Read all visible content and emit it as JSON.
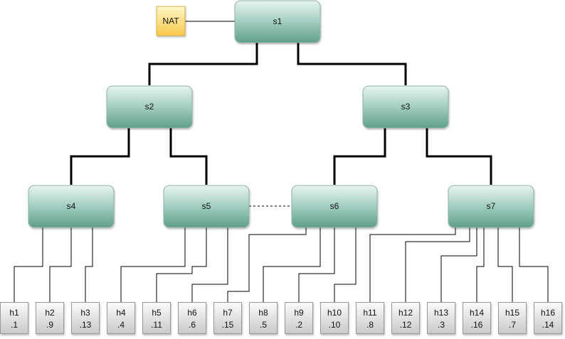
{
  "nat": {
    "label": "NAT"
  },
  "switches": [
    {
      "id": "s1",
      "label": "s1"
    },
    {
      "id": "s2",
      "label": "s2"
    },
    {
      "id": "s3",
      "label": "s3"
    },
    {
      "id": "s4",
      "label": "s4"
    },
    {
      "id": "s5",
      "label": "s5"
    },
    {
      "id": "s6",
      "label": "s6"
    },
    {
      "id": "s7",
      "label": "s7"
    }
  ],
  "hosts": [
    {
      "id": "h1",
      "name": "h1",
      "addr": ".1"
    },
    {
      "id": "h2",
      "name": "h2",
      "addr": ".9"
    },
    {
      "id": "h3",
      "name": "h3",
      "addr": ".13"
    },
    {
      "id": "h4",
      "name": "h4",
      "addr": ".4"
    },
    {
      "id": "h5",
      "name": "h5",
      "addr": ".11"
    },
    {
      "id": "h6",
      "name": "h6",
      "addr": ".6"
    },
    {
      "id": "h7",
      "name": "h7",
      "addr": ".15"
    },
    {
      "id": "h8",
      "name": "h8",
      "addr": ".5"
    },
    {
      "id": "h9",
      "name": "h9",
      "addr": ".2"
    },
    {
      "id": "h10",
      "name": "h10",
      "addr": ".10"
    },
    {
      "id": "h11",
      "name": "h11",
      "addr": ".8"
    },
    {
      "id": "h12",
      "name": "h12",
      "addr": ".12"
    },
    {
      "id": "h13",
      "name": "h13",
      "addr": ".3"
    },
    {
      "id": "h14",
      "name": "h14",
      "addr": ".16"
    },
    {
      "id": "h15",
      "name": "h15",
      "addr": ".7"
    },
    {
      "id": "h16",
      "name": "h16",
      "addr": ".14"
    }
  ],
  "links": {
    "trunk": [
      [
        "s1",
        "s2"
      ],
      [
        "s1",
        "s3"
      ],
      [
        "s2",
        "s4"
      ],
      [
        "s2",
        "s5"
      ],
      [
        "s3",
        "s6"
      ],
      [
        "s3",
        "s7"
      ]
    ],
    "dashed": [
      [
        "s5",
        "s6"
      ]
    ],
    "nat": [
      [
        "nat",
        "s1"
      ]
    ],
    "host": [
      [
        "s4",
        "h1"
      ],
      [
        "s4",
        "h2"
      ],
      [
        "s4",
        "h3"
      ],
      [
        "s5",
        "h4"
      ],
      [
        "s5",
        "h5"
      ],
      [
        "s5",
        "h6"
      ],
      [
        "s6",
        "h7"
      ],
      [
        "s6",
        "h8"
      ],
      [
        "s6",
        "h9"
      ],
      [
        "s6",
        "h10"
      ],
      [
        "s7",
        "h11"
      ],
      [
        "s7",
        "h12"
      ],
      [
        "s7",
        "h13"
      ],
      [
        "s7",
        "h14"
      ],
      [
        "s7",
        "h15"
      ],
      [
        "s7",
        "h16"
      ]
    ]
  },
  "colors": {
    "switch_top": "#e8f3ef",
    "switch_mid": "#a9d1c6",
    "switch_bottom": "#5f9f8b",
    "switch_border": "#8fb3a8",
    "host_top": "#fbfbfb",
    "host_bottom": "#c9c9c9",
    "host_border": "#9a9a9a",
    "nat_top": "#fff6c8",
    "nat_bottom": "#f7c84a",
    "nat_border": "#d9b24a"
  }
}
